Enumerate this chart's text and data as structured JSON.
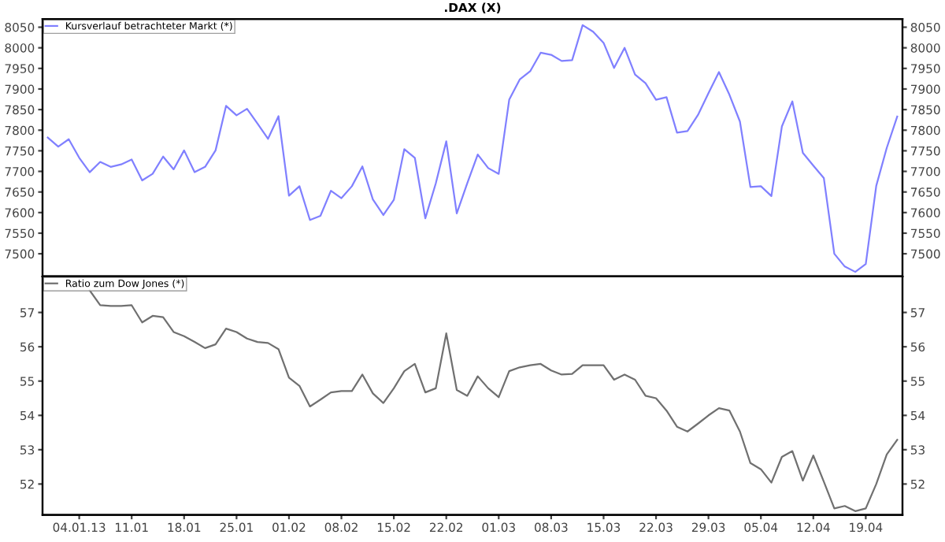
{
  "chart_data": [
    {
      "type": "line",
      "title": ".DAX (X)",
      "legend": "top left",
      "tick_labels": "y",
      "grid": false,
      "categories": [
        null,
        null,
        null,
        "04.01.13",
        null,
        null,
        null,
        null,
        "11.01",
        null,
        null,
        null,
        null,
        "18.01",
        null,
        null,
        null,
        null,
        "25.01",
        null,
        null,
        null,
        null,
        "01.02",
        null,
        null,
        null,
        null,
        "08.02",
        null,
        null,
        null,
        null,
        "15.02",
        null,
        null,
        null,
        null,
        "22.02",
        null,
        null,
        null,
        null,
        "01.03",
        null,
        null,
        null,
        null,
        "08.03",
        null,
        null,
        null,
        null,
        "15.03",
        null,
        null,
        null,
        null,
        "22.03",
        null,
        null,
        null,
        null,
        "29.03",
        null,
        null,
        null,
        null,
        "05.04",
        null,
        null,
        null,
        null,
        "12.04",
        null,
        null,
        null,
        null,
        "19.04",
        null,
        null,
        null
      ],
      "ylim": [
        7445,
        8070
      ],
      "yticks": [
        7500,
        7550,
        7600,
        7650,
        7700,
        7750,
        7800,
        7850,
        7900,
        7950,
        8000,
        8050
      ],
      "y2lim": [
        7445,
        8070
      ],
      "y2ticks": [
        7500,
        7550,
        7600,
        7650,
        7700,
        7750,
        7800,
        7850,
        7900,
        7950,
        8000,
        8050
      ],
      "series": [
        {
          "name": "Kursverlauf betrachteter Markt (*)",
          "color": "#8080ff",
          "values": [
            7782,
            7760,
            7778,
            7733,
            7698,
            7723,
            7711,
            7717,
            7729,
            7678,
            7694,
            7736,
            7705,
            7751,
            7698,
            7711,
            7751,
            7859,
            7836,
            7852,
            7816,
            7779,
            7834,
            7641,
            7664,
            7582,
            7592,
            7653,
            7635,
            7664,
            7712,
            7632,
            7594,
            7631,
            7754,
            7733,
            7586,
            7671,
            7773,
            7598,
            7671,
            7741,
            7708,
            7694,
            7874,
            7923,
            7943,
            7988,
            7983,
            7968,
            7970,
            8055,
            8039,
            8012,
            7951,
            8000,
            7935,
            7914,
            7874,
            7880,
            7794,
            7798,
            7837,
            7890,
            7941,
            7886,
            7821,
            7662,
            7664,
            7640,
            7809,
            7870,
            7745,
            7714,
            7684,
            7500,
            7469,
            7456,
            7475,
            7665,
            7757,
            7833
          ]
        }
      ]
    },
    {
      "type": "line",
      "legend": "top left",
      "grid": false,
      "categories": [
        null,
        null,
        null,
        "04.01.13",
        null,
        null,
        null,
        null,
        "11.01",
        null,
        null,
        null,
        null,
        "18.01",
        null,
        null,
        null,
        null,
        "25.01",
        null,
        null,
        null,
        null,
        "01.02",
        null,
        null,
        null,
        null,
        "08.02",
        null,
        null,
        null,
        null,
        "15.02",
        null,
        null,
        null,
        null,
        "22.02",
        null,
        null,
        null,
        null,
        "01.03",
        null,
        null,
        null,
        null,
        "08.03",
        null,
        null,
        null,
        null,
        "15.03",
        null,
        null,
        null,
        null,
        "22.03",
        null,
        null,
        null,
        null,
        "29.03",
        null,
        null,
        null,
        null,
        "05.04",
        null,
        null,
        null,
        null,
        "12.04",
        null,
        null,
        null,
        null,
        "19.04",
        null,
        null,
        null
      ],
      "ylim": [
        51.1,
        58.05
      ],
      "yticks": [
        52,
        53,
        54,
        55,
        56,
        57
      ],
      "y2lim": [
        51.1,
        58.05
      ],
      "y2ticks": [
        52,
        53,
        54,
        55,
        56,
        57
      ],
      "series": [
        {
          "name": "Ratio zum Dow Jones (*)",
          "color": "#707070",
          "values": [
            null,
            null,
            null,
            null,
            57.64,
            57.21,
            57.19,
            57.19,
            57.21,
            56.71,
            56.9,
            56.86,
            56.43,
            56.31,
            56.14,
            55.96,
            56.07,
            56.53,
            56.43,
            56.24,
            56.14,
            56.11,
            55.93,
            55.1,
            54.86,
            54.26,
            54.46,
            54.67,
            54.71,
            54.71,
            55.19,
            54.64,
            54.36,
            54.79,
            55.29,
            55.5,
            54.67,
            54.79,
            56.39,
            54.74,
            54.57,
            55.14,
            54.79,
            54.53,
            55.29,
            55.4,
            55.46,
            55.5,
            55.31,
            55.19,
            55.21,
            55.46,
            55.46,
            55.46,
            55.04,
            55.19,
            55.04,
            54.57,
            54.5,
            54.14,
            53.67,
            53.53,
            53.76,
            54.0,
            54.21,
            54.14,
            53.53,
            52.61,
            52.43,
            52.04,
            52.79,
            52.96,
            52.1,
            52.83,
            52.07,
            51.29,
            51.36,
            51.21,
            51.29,
            52.0,
            52.86,
            53.29
          ]
        }
      ]
    }
  ]
}
